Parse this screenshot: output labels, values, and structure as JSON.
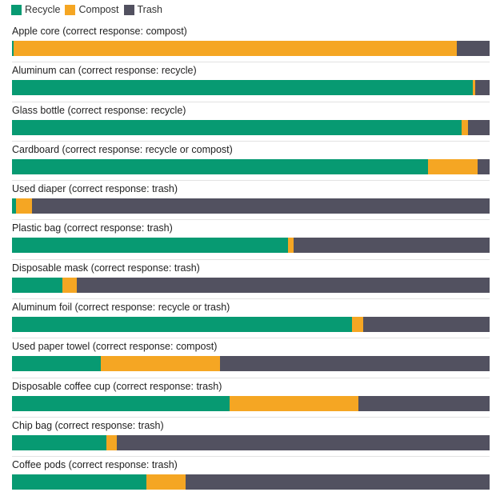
{
  "legend": [
    {
      "label": "Recycle",
      "color": "#079a72"
    },
    {
      "label": "Compost",
      "color": "#f5a623"
    },
    {
      "label": "Trash",
      "color": "#525160"
    }
  ],
  "chart_data": {
    "type": "bar",
    "orientation": "horizontal",
    "stacked": true,
    "normalized_to_percent": true,
    "categories": [
      "Apple core (correct response: compost)",
      "Aluminum can (correct response:  recycle)",
      "Glass bottle (correct response: recycle)",
      "Cardboard (correct response: recycle or compost)",
      "Used diaper (correct response: trash)",
      "Plastic bag (correct response: trash)",
      "Disposable mask (correct response: trash)",
      "Aluminum foil (correct response: recycle or trash)",
      "Used paper towel (correct response: compost)",
      "Disposable coffee cup (correct response: trash)",
      "Chip bag (correct response: trash)",
      "Coffee pods (correct response: trash)"
    ],
    "series": [
      {
        "name": "Recycle",
        "color": "#079a72",
        "values": [
          0.3,
          96.5,
          94.1,
          87.1,
          0.8,
          57.8,
          10.5,
          71.2,
          18.6,
          45.6,
          19.8,
          28.1
        ]
      },
      {
        "name": "Compost",
        "color": "#f5a623",
        "values": [
          92.8,
          0.5,
          1.4,
          10.4,
          3.4,
          1.1,
          3.1,
          2.4,
          24.9,
          27.0,
          2.1,
          8.2
        ]
      },
      {
        "name": "Trash",
        "color": "#525160",
        "values": [
          6.9,
          3.0,
          4.5,
          2.5,
          95.8,
          41.1,
          86.4,
          26.4,
          56.5,
          27.4,
          78.1,
          63.7
        ]
      }
    ],
    "xlim": [
      0,
      100
    ]
  }
}
